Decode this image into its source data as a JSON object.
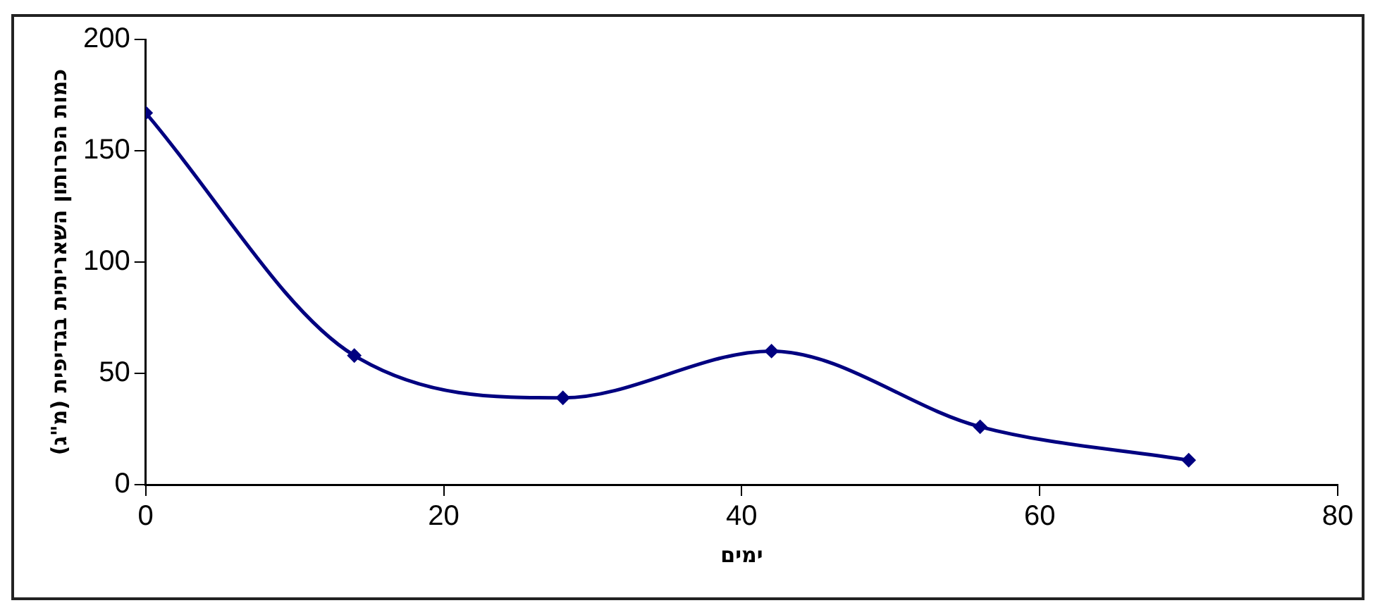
{
  "chart_data": {
    "type": "line",
    "xlabel": "ימים",
    "ylabel": "כמות הפרותון השאריתית בגדיפית (מ\"ג)",
    "x": [
      0,
      14,
      28,
      42,
      56,
      70
    ],
    "series": [
      {
        "color": "#000080",
        "values": [
          167,
          58,
          39,
          60,
          26,
          11
        ]
      }
    ],
    "xlim": [
      0,
      80
    ],
    "xticks": [
      0,
      20,
      40,
      60,
      80
    ],
    "ylim": [
      0,
      200
    ],
    "yticks": [
      0,
      50,
      100,
      150,
      200
    ],
    "grid": false,
    "legend": false,
    "marker": "diamond",
    "line_style": "solid"
  }
}
